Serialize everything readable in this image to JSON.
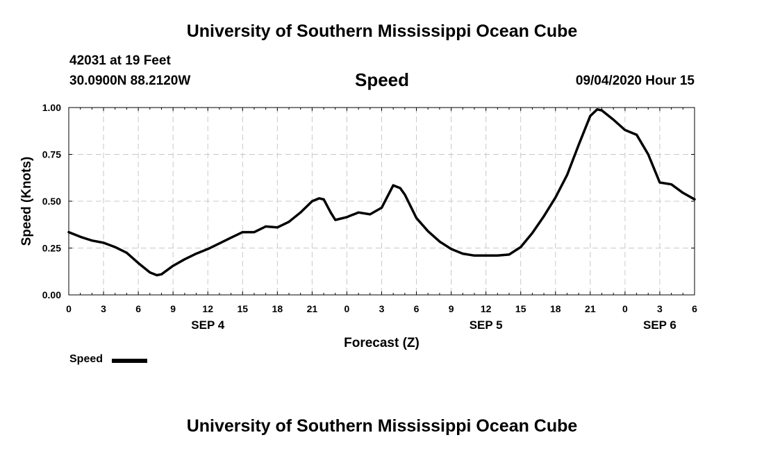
{
  "header": {
    "title_top": "University of Southern Mississippi Ocean Cube",
    "station": "42031 at 19 Feet",
    "coords": "30.0900N 88.2120W",
    "chart_title": "Speed",
    "datetime": "09/04/2020 Hour 15"
  },
  "footer": {
    "title_bottom": "University of Southern Mississippi Ocean Cube"
  },
  "legend": {
    "label": "Speed",
    "color": "#000000"
  },
  "chart_data": {
    "type": "line",
    "title": "Speed",
    "xlabel": "Forecast (Z)",
    "ylabel": "Speed (Knots)",
    "xlim": [
      0,
      54
    ],
    "ylim": [
      0,
      1
    ],
    "grid": true,
    "legend_position": "bottom-left",
    "x_ticks": [
      {
        "x": 0,
        "label": "0"
      },
      {
        "x": 3,
        "label": "3"
      },
      {
        "x": 6,
        "label": "6"
      },
      {
        "x": 9,
        "label": "9"
      },
      {
        "x": 12,
        "label": "12"
      },
      {
        "x": 15,
        "label": "15"
      },
      {
        "x": 18,
        "label": "18"
      },
      {
        "x": 21,
        "label": "21"
      },
      {
        "x": 24,
        "label": "0"
      },
      {
        "x": 27,
        "label": "3"
      },
      {
        "x": 30,
        "label": "6"
      },
      {
        "x": 33,
        "label": "9"
      },
      {
        "x": 36,
        "label": "12"
      },
      {
        "x": 39,
        "label": "15"
      },
      {
        "x": 42,
        "label": "18"
      },
      {
        "x": 45,
        "label": "21"
      },
      {
        "x": 48,
        "label": "0"
      },
      {
        "x": 51,
        "label": "3"
      },
      {
        "x": 54,
        "label": "6"
      }
    ],
    "y_ticks": [
      {
        "y": 0,
        "label": "0.00"
      },
      {
        "y": 0.25,
        "label": "0.25"
      },
      {
        "y": 0.5,
        "label": "0.50"
      },
      {
        "y": 0.75,
        "label": "0.75"
      },
      {
        "y": 1,
        "label": "1.00"
      }
    ],
    "date_labels": [
      {
        "x": 12,
        "label": "SEP 4"
      },
      {
        "x": 36,
        "label": "SEP 5"
      },
      {
        "x": 51,
        "label": "SEP 6"
      }
    ],
    "series": [
      {
        "name": "Speed",
        "color": "#000000",
        "points": [
          [
            0,
            0.335
          ],
          [
            1,
            0.31
          ],
          [
            2,
            0.29
          ],
          [
            3,
            0.278
          ],
          [
            4,
            0.255
          ],
          [
            5,
            0.225
          ],
          [
            6,
            0.17
          ],
          [
            7,
            0.12
          ],
          [
            7.6,
            0.105
          ],
          [
            8,
            0.11
          ],
          [
            9,
            0.155
          ],
          [
            10,
            0.19
          ],
          [
            11,
            0.22
          ],
          [
            12,
            0.245
          ],
          [
            13,
            0.275
          ],
          [
            14,
            0.305
          ],
          [
            15,
            0.335
          ],
          [
            16,
            0.335
          ],
          [
            17,
            0.365
          ],
          [
            18,
            0.36
          ],
          [
            19,
            0.39
          ],
          [
            20,
            0.44
          ],
          [
            21,
            0.5
          ],
          [
            21.6,
            0.515
          ],
          [
            22,
            0.51
          ],
          [
            22.6,
            0.44
          ],
          [
            23,
            0.4
          ],
          [
            24,
            0.415
          ],
          [
            25,
            0.44
          ],
          [
            26,
            0.43
          ],
          [
            27,
            0.465
          ],
          [
            28,
            0.585
          ],
          [
            28.6,
            0.57
          ],
          [
            29,
            0.535
          ],
          [
            30,
            0.41
          ],
          [
            31,
            0.34
          ],
          [
            32,
            0.285
          ],
          [
            33,
            0.245
          ],
          [
            34,
            0.22
          ],
          [
            35,
            0.21
          ],
          [
            36,
            0.21
          ],
          [
            37,
            0.21
          ],
          [
            38,
            0.215
          ],
          [
            39,
            0.255
          ],
          [
            40,
            0.33
          ],
          [
            41,
            0.42
          ],
          [
            42,
            0.52
          ],
          [
            43,
            0.64
          ],
          [
            44,
            0.8
          ],
          [
            45,
            0.955
          ],
          [
            45.6,
            0.99
          ],
          [
            46,
            0.985
          ],
          [
            47,
            0.935
          ],
          [
            48,
            0.88
          ],
          [
            49,
            0.855
          ],
          [
            50,
            0.75
          ],
          [
            51,
            0.6
          ],
          [
            52,
            0.59
          ],
          [
            53,
            0.545
          ],
          [
            54,
            0.51
          ]
        ]
      }
    ]
  }
}
